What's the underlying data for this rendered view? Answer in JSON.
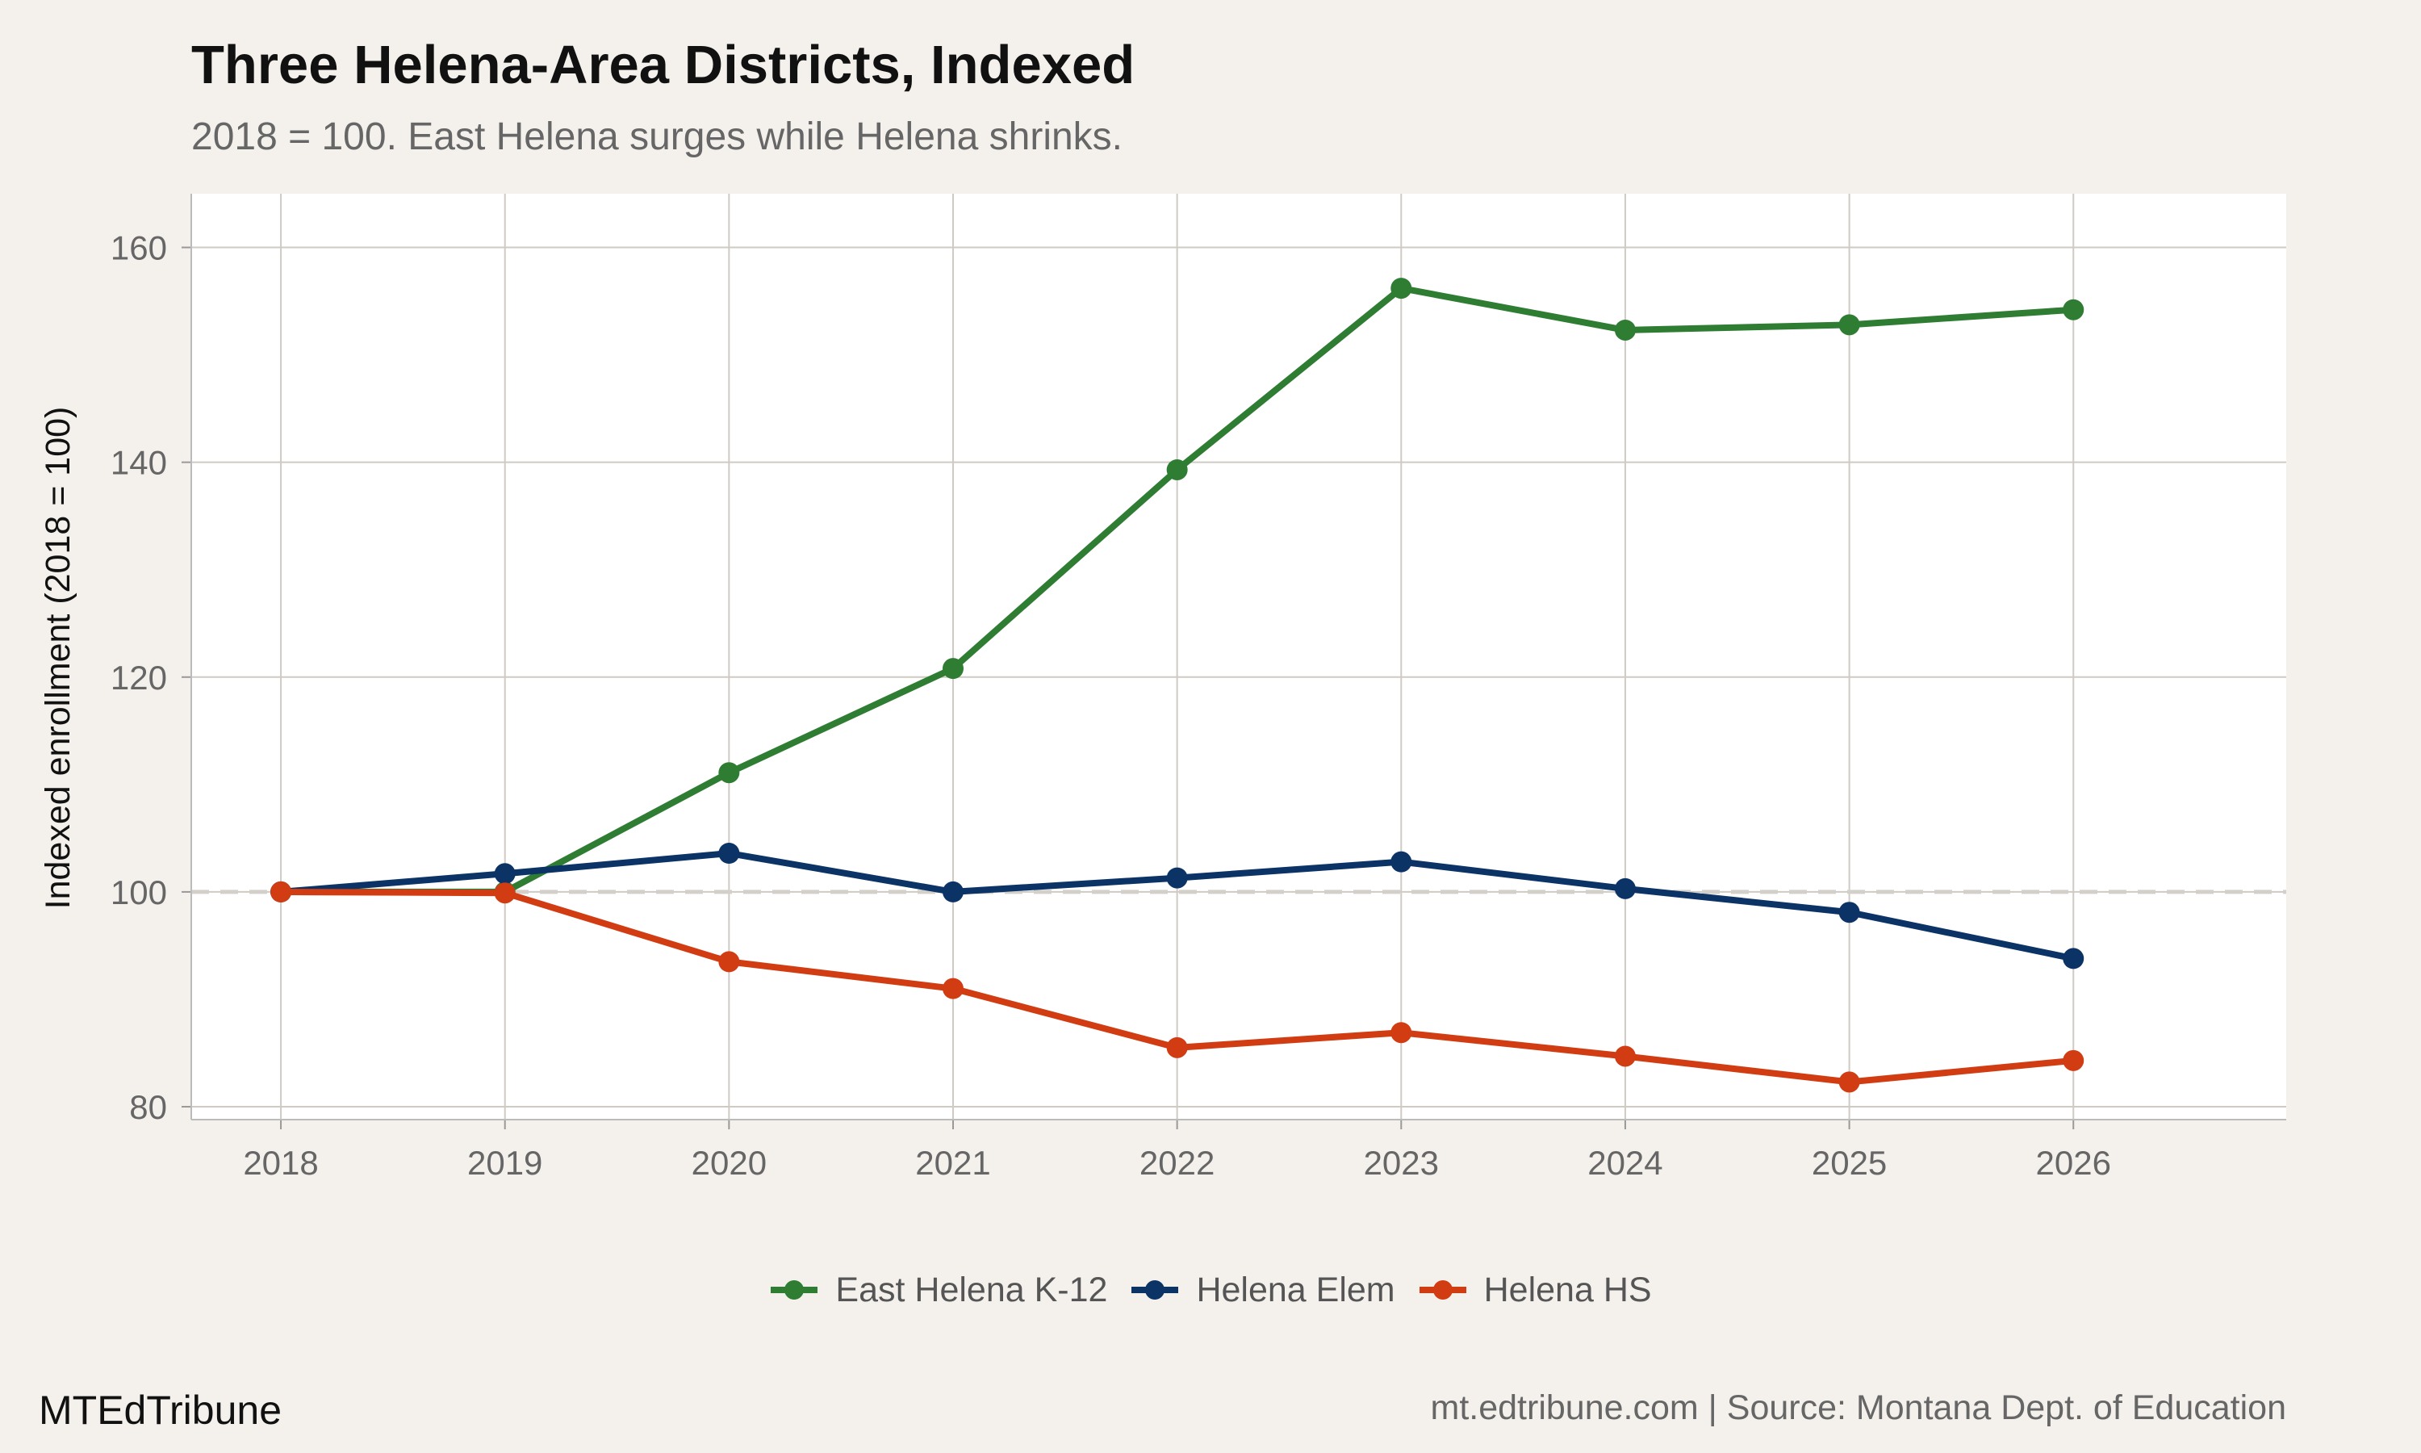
{
  "colors": {
    "background": "#f4f1ec",
    "panel": "#ffffff",
    "grid": "#cfcbc4",
    "reference_line": "#d3d0ca",
    "east_helena": "#2e7d32",
    "helena_elem": "#0b3366",
    "helena_hs": "#d13c12"
  },
  "chart_data": {
    "type": "line",
    "title": "Three Helena-Area Districts, Indexed",
    "subtitle": "2018 = 100. East Helena surges while Helena shrinks.",
    "xlabel": "",
    "ylabel": "Indexed enrollment (2018 = 100)",
    "x": [
      2018,
      2019,
      2020,
      2021,
      2022,
      2023,
      2024,
      2025,
      2026
    ],
    "xlim": [
      2017.6,
      2026.95
    ],
    "ylim": [
      78.8,
      165
    ],
    "yticks": [
      80,
      100,
      120,
      140,
      160
    ],
    "reference_line": {
      "y": 100,
      "style": "dashed"
    },
    "grid": true,
    "legend": "bottom",
    "series": [
      {
        "name": "East Helena K-12",
        "color_key": "east_helena",
        "values": [
          100,
          100,
          111.1,
          120.8,
          139.3,
          156.2,
          152.3,
          152.8,
          154.2
        ]
      },
      {
        "name": "Helena Elem",
        "color_key": "helena_elem",
        "values": [
          100,
          101.7,
          103.6,
          100,
          101.3,
          102.8,
          100.3,
          98.1,
          93.8
        ]
      },
      {
        "name": "Helena HS",
        "color_key": "helena_hs",
        "values": [
          100,
          99.9,
          93.5,
          91.0,
          85.5,
          86.9,
          84.7,
          82.3,
          84.3
        ]
      }
    ]
  },
  "caption": {
    "left": "MTEdTribune",
    "right": "mt.edtribune.com | Source: Montana Dept. of Education"
  }
}
